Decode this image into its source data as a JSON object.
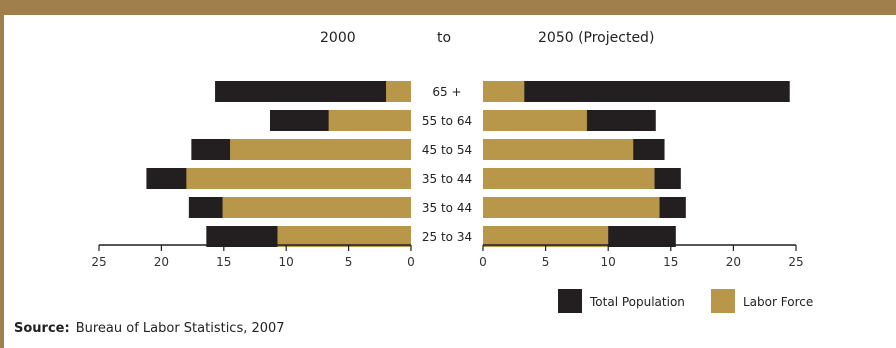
{
  "header": {
    "left_title": "2000",
    "middle_word": "to",
    "right_title": "2050 (Projected)"
  },
  "colors": {
    "band": "#a07f4d",
    "total_population": "#231f20",
    "labor_force": "#b8974a"
  },
  "legend": {
    "total_population": "Total Population",
    "labor_force": "Labor Force"
  },
  "source": {
    "label": "Source:",
    "text": "Bureau of Labor Statistics, 2007"
  },
  "chart_data": [
    {
      "type": "bar",
      "orientation": "horizontal",
      "title": "2000",
      "direction": "right-to-left",
      "categories": [
        "65 +",
        "55 to 64",
        "45 to 54",
        "35 to 44",
        "35 to 44",
        "25 to 34"
      ],
      "series": [
        {
          "name": "Total Population",
          "values": [
            15.7,
            11.3,
            17.6,
            21.2,
            17.8,
            16.4
          ]
        },
        {
          "name": "Labor Force",
          "values": [
            2.0,
            6.6,
            14.5,
            18.0,
            15.1,
            10.7
          ]
        }
      ],
      "xlim": [
        0,
        25
      ],
      "xticks": [
        25,
        20,
        15,
        10,
        5,
        0
      ]
    },
    {
      "type": "bar",
      "orientation": "horizontal",
      "title": "2050 (Projected)",
      "direction": "left-to-right",
      "categories": [
        "65 +",
        "55 to 64",
        "45 to 54",
        "35 to 44",
        "35 to 44",
        "25 to 34"
      ],
      "series": [
        {
          "name": "Total Population",
          "values": [
            24.5,
            13.8,
            14.5,
            15.8,
            16.2,
            15.4
          ]
        },
        {
          "name": "Labor Force",
          "values": [
            3.3,
            8.3,
            12.0,
            13.7,
            14.1,
            10.0
          ]
        }
      ],
      "xlim": [
        0,
        25
      ],
      "xticks": [
        0,
        5,
        10,
        15,
        20,
        25
      ]
    }
  ]
}
